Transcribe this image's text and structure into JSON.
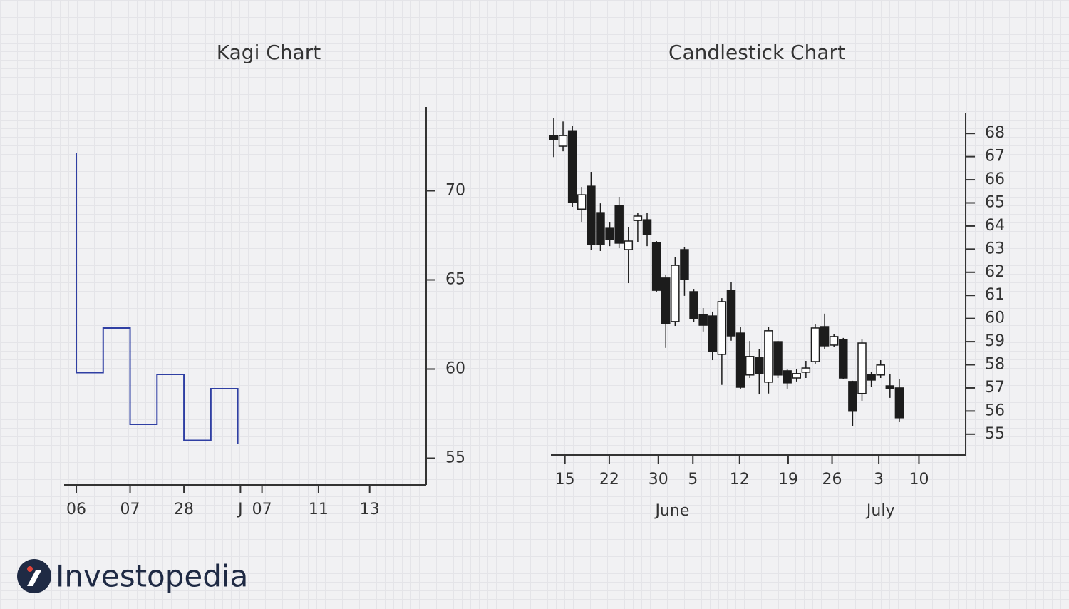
{
  "brand": "Investopedia",
  "chart_data": [
    {
      "type": "kagi",
      "title": "Kagi Chart",
      "color": "#2f3fa3",
      "x": [
        0,
        0,
        1,
        1,
        2,
        2,
        3,
        3,
        4,
        4,
        5,
        5,
        6,
        6
      ],
      "values": [
        72.1,
        59.8,
        59.8,
        62.3,
        62.3,
        56.9,
        56.9,
        59.7,
        59.7,
        56.0,
        56.0,
        58.9,
        58.9,
        55.8
      ],
      "xlim": [
        -0.45,
        13
      ],
      "xticks": [
        {
          "value": 0,
          "label": "06"
        },
        {
          "value": 2,
          "label": "07"
        },
        {
          "value": 4,
          "label": "28"
        },
        {
          "value": 6.1,
          "label": "J"
        },
        {
          "value": 6.9,
          "label": "07"
        },
        {
          "value": 9,
          "label": "11"
        },
        {
          "value": 10.9,
          "label": "13"
        }
      ],
      "ylim": [
        53.5,
        74.7
      ],
      "yticks": [
        55,
        60,
        65,
        70
      ]
    },
    {
      "type": "candlestick",
      "title": "Candlestick Chart",
      "up_color": "#ffffff",
      "down_color": "#1c1c1c",
      "x": [
        0,
        1,
        2,
        3,
        4,
        5,
        6,
        7,
        8,
        9,
        10,
        11,
        12,
        13,
        14,
        15,
        16,
        17,
        18,
        19,
        20,
        21,
        22,
        23,
        24,
        25,
        26,
        27,
        28,
        29,
        30,
        31,
        32,
        33,
        34,
        35,
        36,
        37
      ],
      "open": [
        67.91,
        67.45,
        68.12,
        64.73,
        65.72,
        64.58,
        63.9,
        64.89,
        62.98,
        64.24,
        64.27,
        63.29,
        61.75,
        59.87,
        62.98,
        61.16,
        60.18,
        60.11,
        58.45,
        61.22,
        59.37,
        57.56,
        58.3,
        57.25,
        59.0,
        57.74,
        57.43,
        57.68,
        58.14,
        59.65,
        58.85,
        59.1,
        57.28,
        56.76,
        57.59,
        57.56,
        57.09,
        57.0
      ],
      "high": [
        68.68,
        68.52,
        68.34,
        65.69,
        66.34,
        64.98,
        64.15,
        65.26,
        63.96,
        64.58,
        64.58,
        63.35,
        61.87,
        62.67,
        63.1,
        61.28,
        60.45,
        60.3,
        60.88,
        61.59,
        59.65,
        59.03,
        58.67,
        59.65,
        59.03,
        57.8,
        57.8,
        58.17,
        59.74,
        60.21,
        59.34,
        59.16,
        57.31,
        59.1,
        57.68,
        58.2,
        57.59,
        57.37
      ],
      "low": [
        66.98,
        67.23,
        64.83,
        64.15,
        62.98,
        62.92,
        63.13,
        63.04,
        61.53,
        63.29,
        63.13,
        61.13,
        58.73,
        59.68,
        60.98,
        59.84,
        59.44,
        58.2,
        57.13,
        59.04,
        56.97,
        57.43,
        56.72,
        56.76,
        57.43,
        56.97,
        57.28,
        57.43,
        58.05,
        58.67,
        58.76,
        57.37,
        55.34,
        56.42,
        57.03,
        57.43,
        56.57,
        55.52
      ],
      "close": [
        67.75,
        67.91,
        65.01,
        65.35,
        63.19,
        63.19,
        63.41,
        63.26,
        63.35,
        64.43,
        63.63,
        61.22,
        59.77,
        62.3,
        61.68,
        59.99,
        59.71,
        58.57,
        60.73,
        59.25,
        57.03,
        58.36,
        57.62,
        59.47,
        57.56,
        57.22,
        57.62,
        57.86,
        59.59,
        58.82,
        59.22,
        57.43,
        55.99,
        58.94,
        57.34,
        57.99,
        56.97,
        55.71
      ],
      "xlim": [
        -0.3,
        44.1
      ],
      "xticks": [
        {
          "value": 1.2,
          "label": "15"
        },
        {
          "value": 5.95,
          "label": "22"
        },
        {
          "value": 11.2,
          "label": "30"
        },
        {
          "value": 14.9,
          "label": "5"
        },
        {
          "value": 19.9,
          "label": "12"
        },
        {
          "value": 25.1,
          "label": "19"
        },
        {
          "value": 29.8,
          "label": "26"
        },
        {
          "value": 34.8,
          "label": "3"
        },
        {
          "value": 39.1,
          "label": "10"
        }
      ],
      "month_labels": [
        {
          "value": 12.7,
          "label": "June"
        },
        {
          "value": 35,
          "label": "July"
        }
      ],
      "ylim": [
        54.1,
        68.9
      ],
      "yticks": [
        55,
        56,
        57,
        58,
        59,
        60,
        61,
        62,
        63,
        64,
        65,
        66,
        67,
        68
      ]
    }
  ]
}
